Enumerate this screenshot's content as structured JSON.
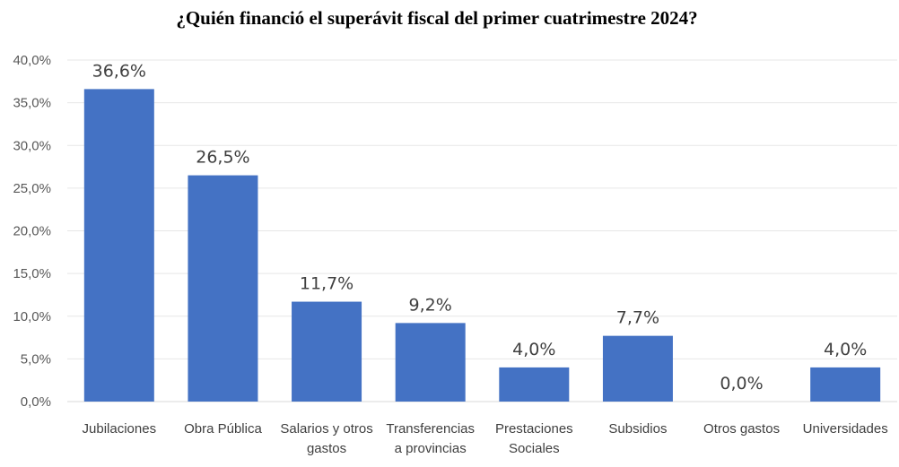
{
  "chart_data": {
    "type": "bar",
    "title": "¿Quién financió el superávit fiscal del primer cuatrimestre 2024?",
    "xlabel": "",
    "ylabel": "",
    "categories": [
      [
        "Jubilaciones"
      ],
      [
        "Obra Pública"
      ],
      [
        "Salarios y otros",
        "gastos"
      ],
      [
        "Transferencias",
        "a provincias"
      ],
      [
        "Prestaciones",
        "Sociales"
      ],
      [
        "Subsidios"
      ],
      [
        "Otros gastos"
      ],
      [
        "Universidades"
      ]
    ],
    "values": [
      36.6,
      26.5,
      11.7,
      9.2,
      4.0,
      7.7,
      0.0,
      4.0
    ],
    "data_labels": [
      "36,6%",
      "26,5%",
      "11,7%",
      "9,2%",
      "4,0%",
      "7,7%",
      "0,0%",
      "4,0%"
    ],
    "ylim": [
      0,
      40
    ],
    "yticks": [
      0,
      5,
      10,
      15,
      20,
      25,
      30,
      35,
      40
    ],
    "ytick_labels": [
      "0,0%",
      "5,0%",
      "10,0%",
      "15,0%",
      "20,0%",
      "25,0%",
      "30,0%",
      "35,0%",
      "40,0%"
    ],
    "grid": true,
    "legend": "none",
    "bar_color": "#4472C4",
    "grid_color": "#E7E7E7"
  }
}
